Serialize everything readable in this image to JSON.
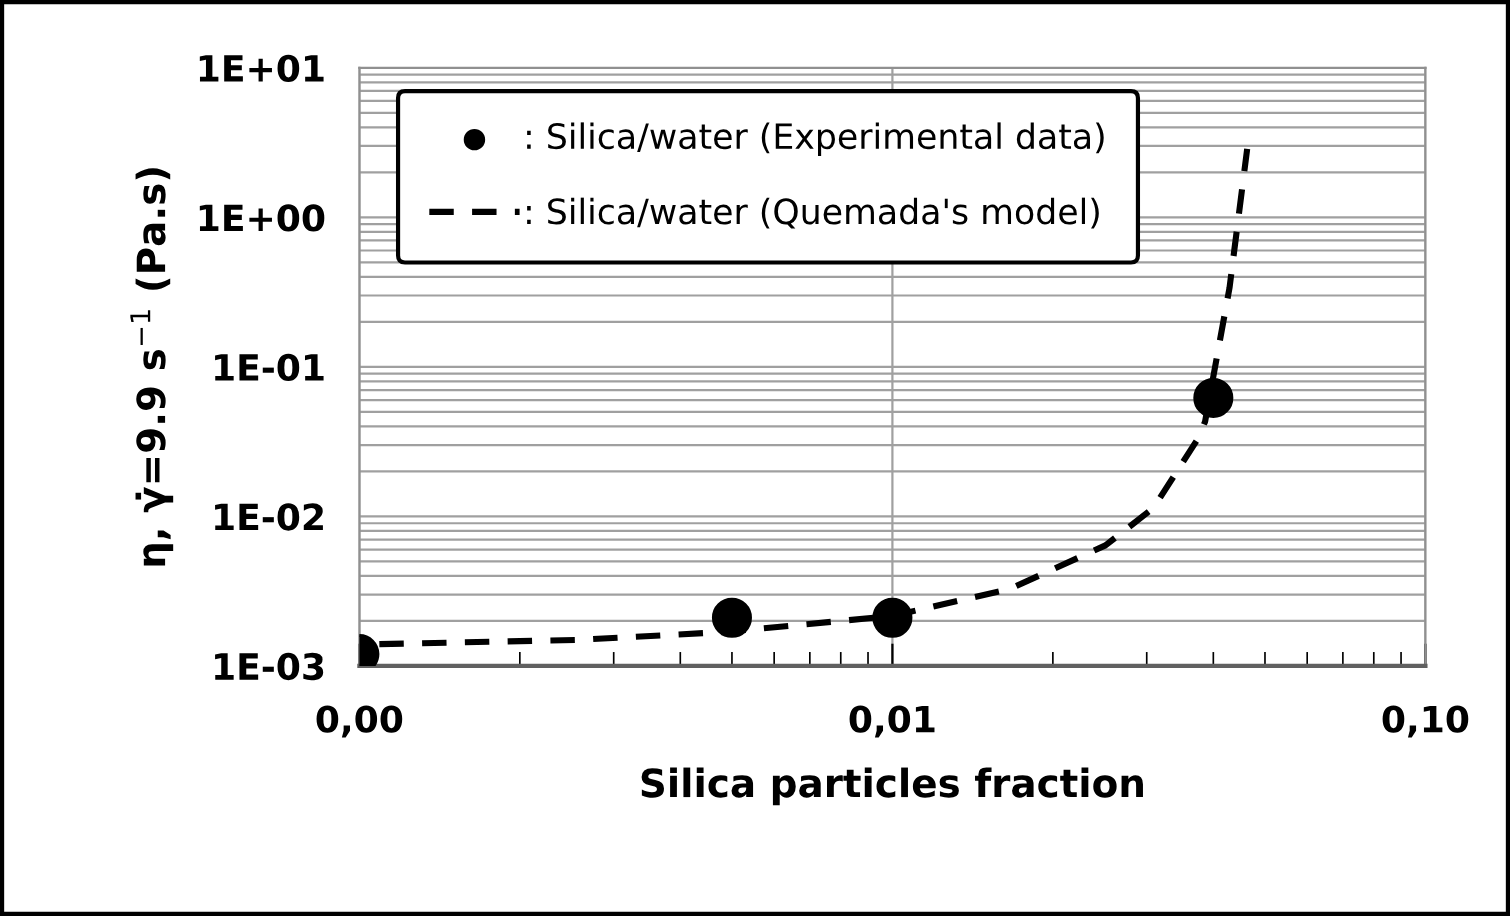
{
  "chart_data": {
    "type": "scatter",
    "xlabel": "Silica particles fraction",
    "ylabel": "η, γ̇=9.9 s$^{−1}$ (Pa.s)",
    "log": "xy",
    "grid": true,
    "legend": "top left",
    "xlim": [
      0.001,
      0.1
    ],
    "xticks": [
      {
        "value": 0.001,
        "label": "0,00"
      },
      {
        "value": 0.01,
        "label": "0,01"
      },
      {
        "value": 0.1,
        "label": "0,10"
      }
    ],
    "ylim": [
      0.001,
      10
    ],
    "yticks": [
      {
        "value": 0.001,
        "label": "1E-03"
      },
      {
        "value": 0.01,
        "label": "1E-02"
      },
      {
        "value": 0.1,
        "label": "1E-01"
      },
      {
        "value": 1,
        "label": "1E+00"
      },
      {
        "value": 10,
        "label": "1E+01"
      }
    ],
    "series": [
      {
        "name": ": Silica/water (Experimental data)",
        "marker": "circle",
        "color": "#000000",
        "x": [
          0.001,
          0.005,
          0.01,
          0.04
        ],
        "values": [
          0.0012,
          0.0021,
          0.0021,
          0.062
        ]
      },
      {
        "name": ": Silica/water (Quemada's model)",
        "type": "line",
        "line_style": "dashed",
        "marker": "none",
        "color": "#000000",
        "x": [
          0.00109,
          0.00254,
          0.0049,
          0.01,
          0.0166,
          0.0251,
          0.0309,
          0.0373,
          0.0386,
          0.0429,
          0.0463
        ],
        "values": [
          0.0014,
          0.00149,
          0.00169,
          0.00216,
          0.00327,
          0.0064,
          0.0114,
          0.0325,
          0.043,
          0.338,
          2.87
        ]
      }
    ]
  }
}
